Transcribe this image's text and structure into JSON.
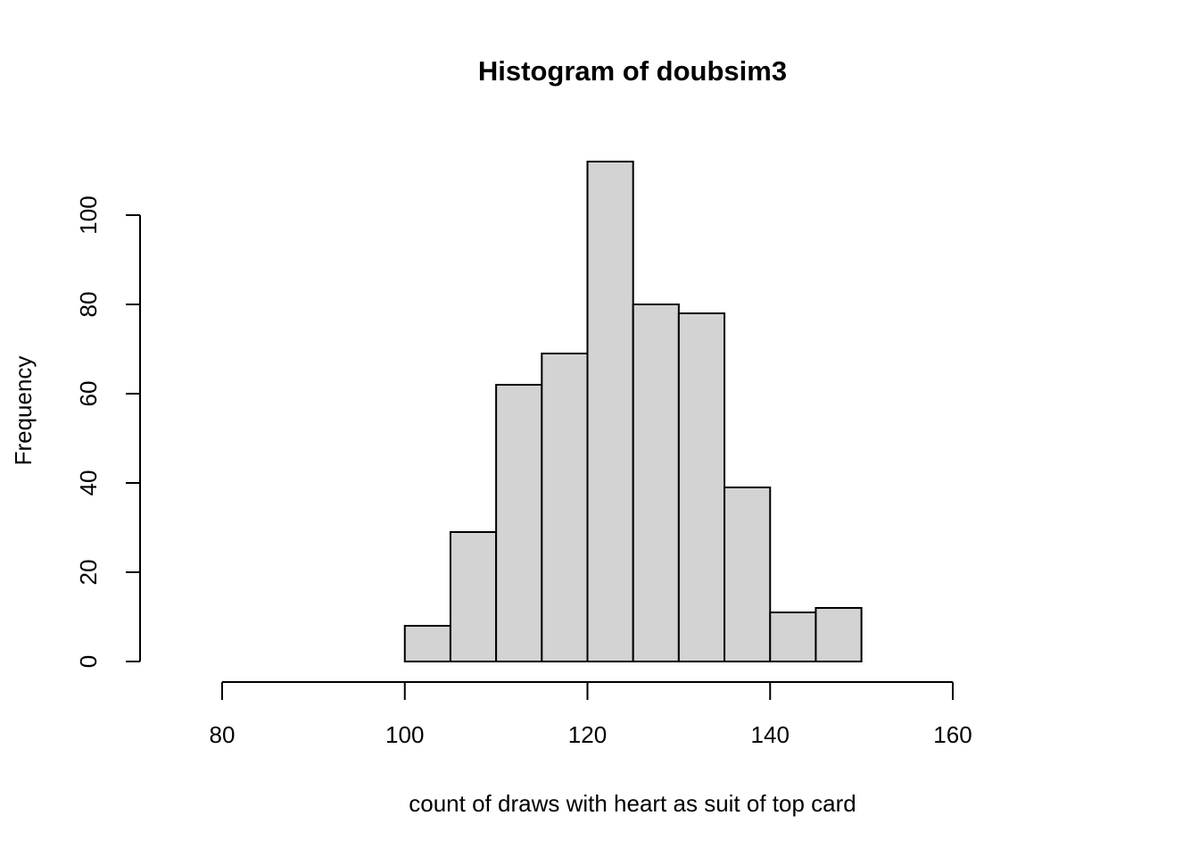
{
  "chart_data": {
    "type": "histogram",
    "title": "Histogram of doubsim3",
    "xlabel": "count of draws with heart as suit of top card",
    "ylabel": "Frequency",
    "bin_edges": [
      100,
      105,
      110,
      115,
      120,
      125,
      130,
      135,
      140,
      145,
      150
    ],
    "values": [
      8,
      29,
      62,
      69,
      112,
      80,
      78,
      39,
      11,
      12
    ],
    "xlim": [
      80,
      160
    ],
    "ylim": [
      0,
      112
    ],
    "x_ticks": [
      80,
      100,
      120,
      140,
      160
    ],
    "y_ticks": [
      0,
      20,
      40,
      60,
      80,
      100
    ],
    "bar_color": "#d3d3d3",
    "grid": false,
    "legend": "none"
  }
}
